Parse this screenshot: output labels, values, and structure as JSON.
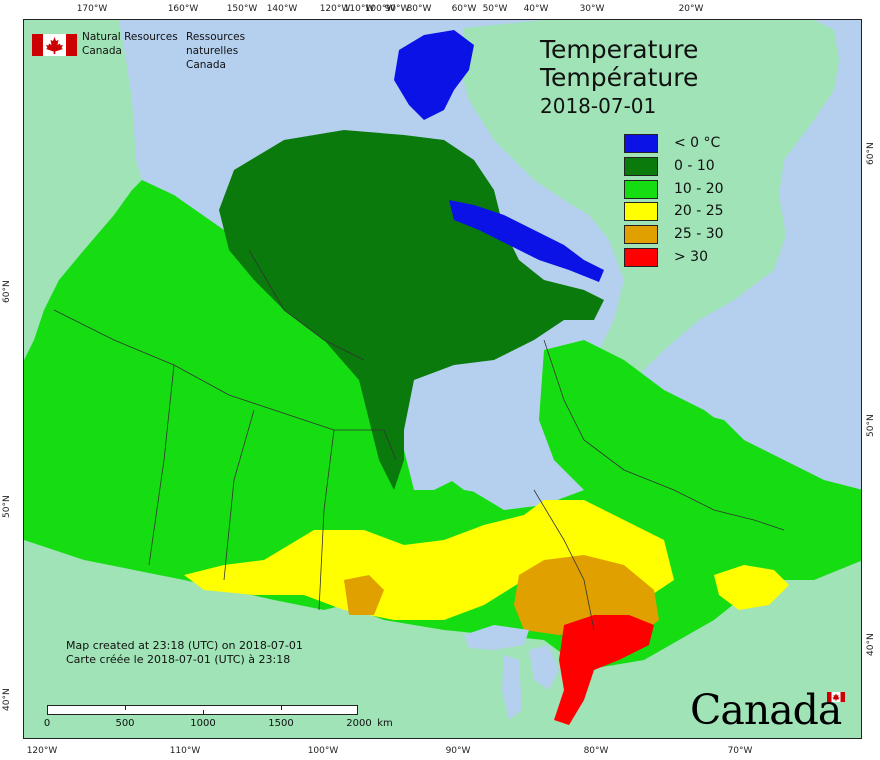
{
  "agency": {
    "name_en": "Natural Resources",
    "country_en": "Canada",
    "name_fr": "Ressources naturelles",
    "country_fr": "Canada"
  },
  "title": {
    "line1": "Temperature",
    "line2": "Température",
    "date": "2018-07-01"
  },
  "legend": [
    {
      "label": "< 0 °C",
      "color": "#0a12e6"
    },
    {
      "label": "0 - 10",
      "color": "#0b7a0c"
    },
    {
      "label": "10 - 20",
      "color": "#15dd12"
    },
    {
      "label": "20 - 25",
      "color": "#ffff00"
    },
    {
      "label": "25 - 30",
      "color": "#e0a000"
    },
    {
      "label": "> 30",
      "color": "#ff0000"
    }
  ],
  "created": {
    "en": "Map created at 23:18 (UTC) on 2018-07-01",
    "fr": "Carte créée le 2018-07-01 (UTC) à 23:18"
  },
  "scale": {
    "labels": [
      "0",
      "500",
      "1000",
      "1500",
      "2000"
    ],
    "unit": "km"
  },
  "graticule": {
    "top": [
      "170°W",
      "160°W",
      "150°W",
      "140°W",
      "120°W",
      "110°W",
      "100°W",
      "90°W",
      "80°W",
      "60°W",
      "50°W",
      "40°W",
      "30°W",
      "20°W"
    ],
    "bottom": [
      "120°W",
      "110°W",
      "100°W",
      "90°W",
      "80°W",
      "70°W"
    ],
    "left": [
      "60°N",
      "50°N",
      "40°N"
    ],
    "right": [
      "60°N",
      "50°N",
      "40°N"
    ]
  },
  "wordmark": "Canada",
  "colors": {
    "ocean": "#b5d0ee",
    "foreign_land": "#9fe3b6",
    "boundary": "#333333"
  }
}
